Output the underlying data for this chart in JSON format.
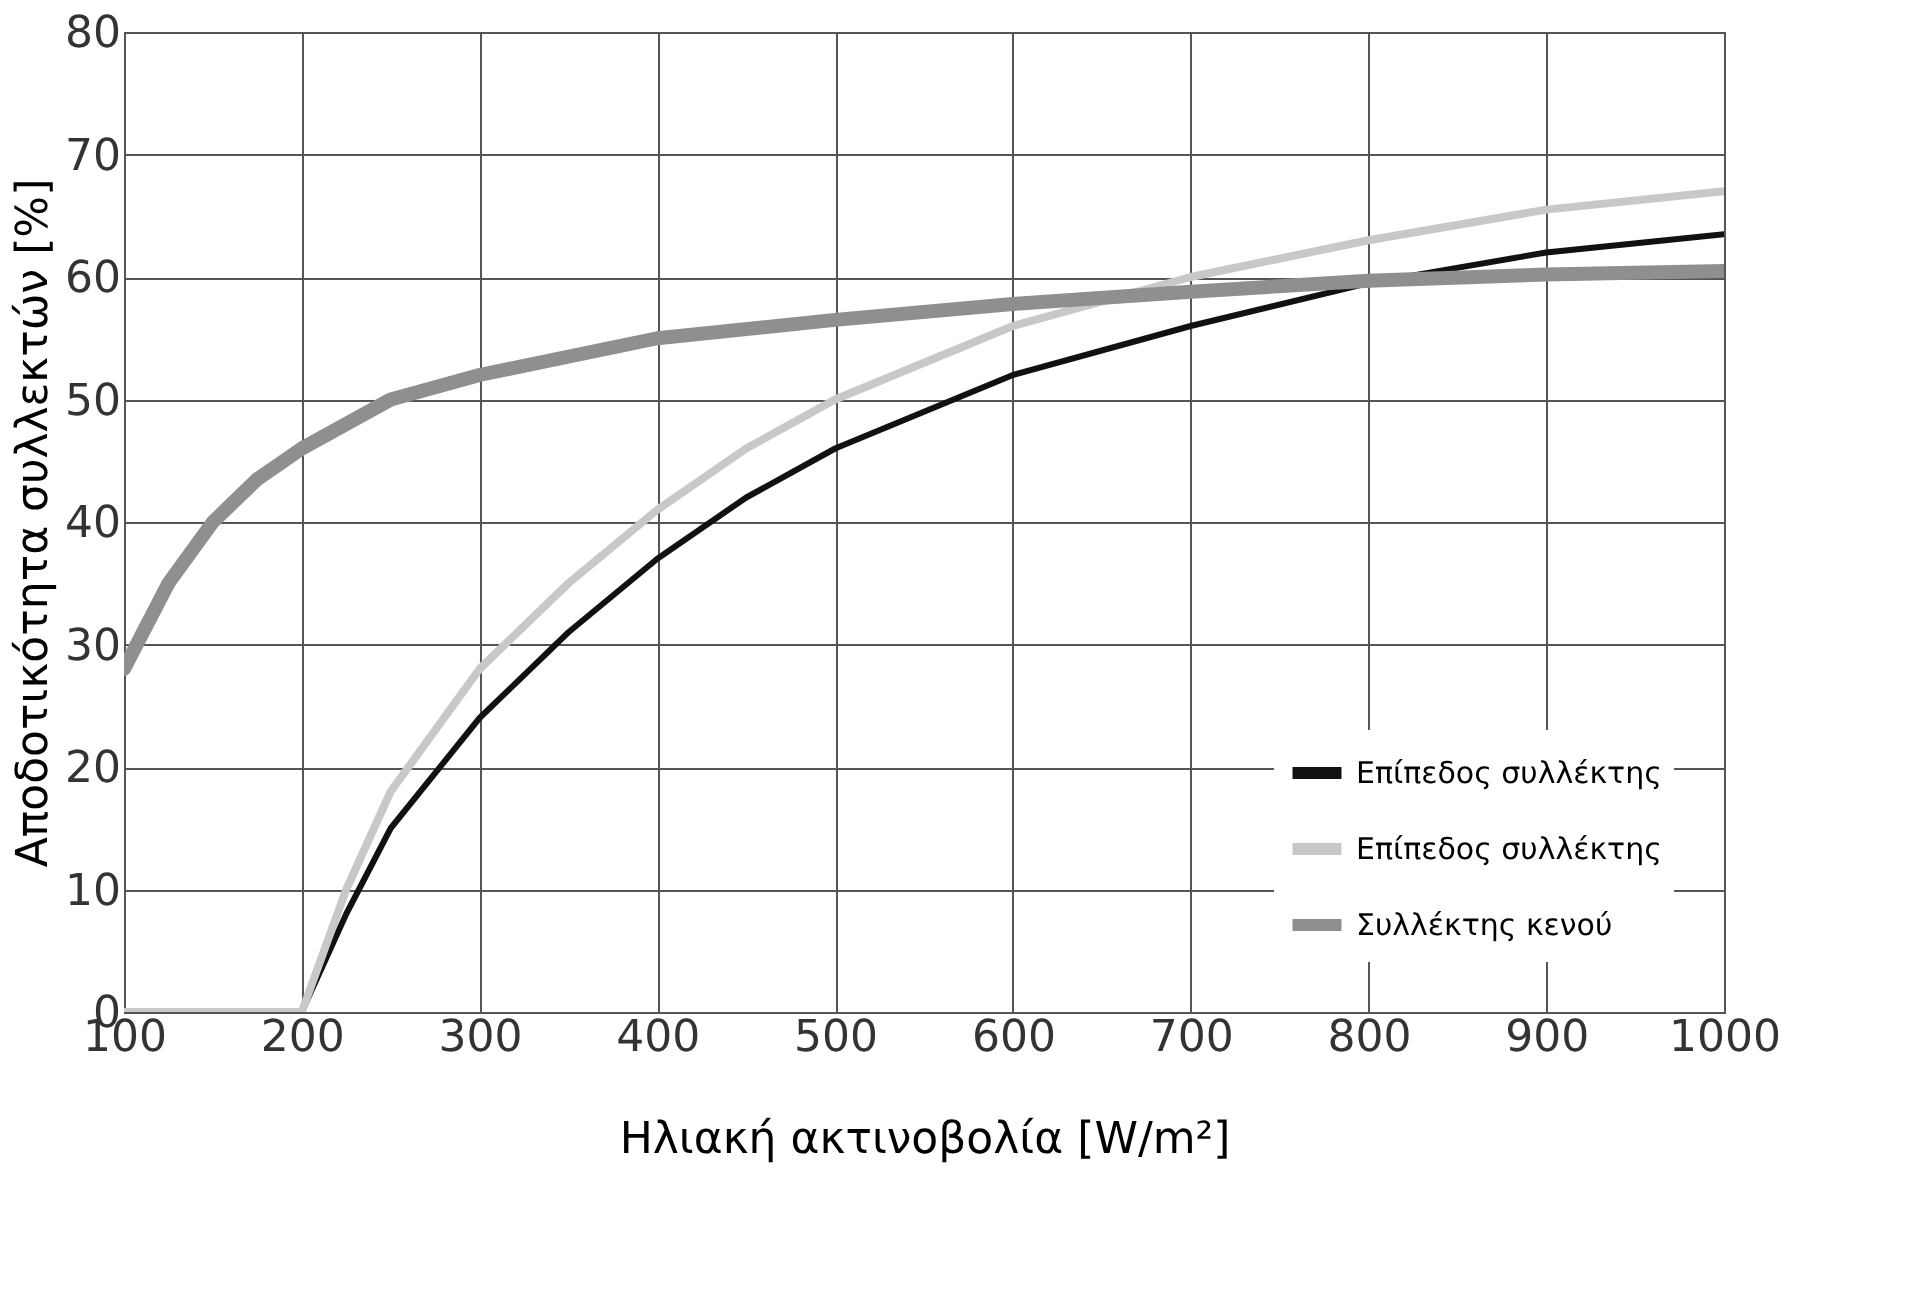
{
  "chart_data": {
    "type": "line",
    "xlabel": "Ηλιακή ακτινοβολία [W/m²]",
    "ylabel": "Αποδοτικότητα συλλεκτών [%]",
    "xlim": [
      100,
      1000
    ],
    "ylim": [
      0,
      80
    ],
    "xticks": [
      100,
      200,
      300,
      400,
      500,
      600,
      700,
      800,
      900,
      1000
    ],
    "yticks": [
      0,
      10,
      20,
      30,
      40,
      50,
      60,
      70,
      80
    ],
    "grid": true,
    "legend": "bottom right",
    "line_style": "solid",
    "marker": "none",
    "series": [
      {
        "name": "Επίπεδος συλλέκτης",
        "color": "#111111",
        "x": [
          100,
          150,
          200,
          225,
          250,
          300,
          350,
          400,
          450,
          500,
          600,
          700,
          800,
          900,
          1000
        ],
        "values": [
          0,
          0,
          0,
          8,
          15,
          24,
          31,
          37,
          42,
          46,
          52,
          56,
          59.5,
          62,
          63.5
        ]
      },
      {
        "name": "Επίπεδος συλλέκτης",
        "color": "#c8c8c8",
        "x": [
          100,
          150,
          200,
          225,
          250,
          300,
          350,
          400,
          450,
          500,
          600,
          700,
          800,
          900,
          1000
        ],
        "values": [
          0,
          0,
          0,
          10,
          18,
          28,
          35,
          41,
          46,
          50,
          56,
          60,
          63,
          65.5,
          67
        ]
      },
      {
        "name": "Συλλέκτης κενού",
        "color": "#8f8f8f",
        "x": [
          100,
          125,
          150,
          175,
          200,
          250,
          300,
          400,
          500,
          600,
          700,
          800,
          900,
          1000
        ],
        "values": [
          28,
          35,
          40,
          43.5,
          46,
          50,
          52,
          55,
          56.5,
          57.8,
          58.8,
          59.7,
          60.2,
          60.5
        ]
      }
    ]
  }
}
